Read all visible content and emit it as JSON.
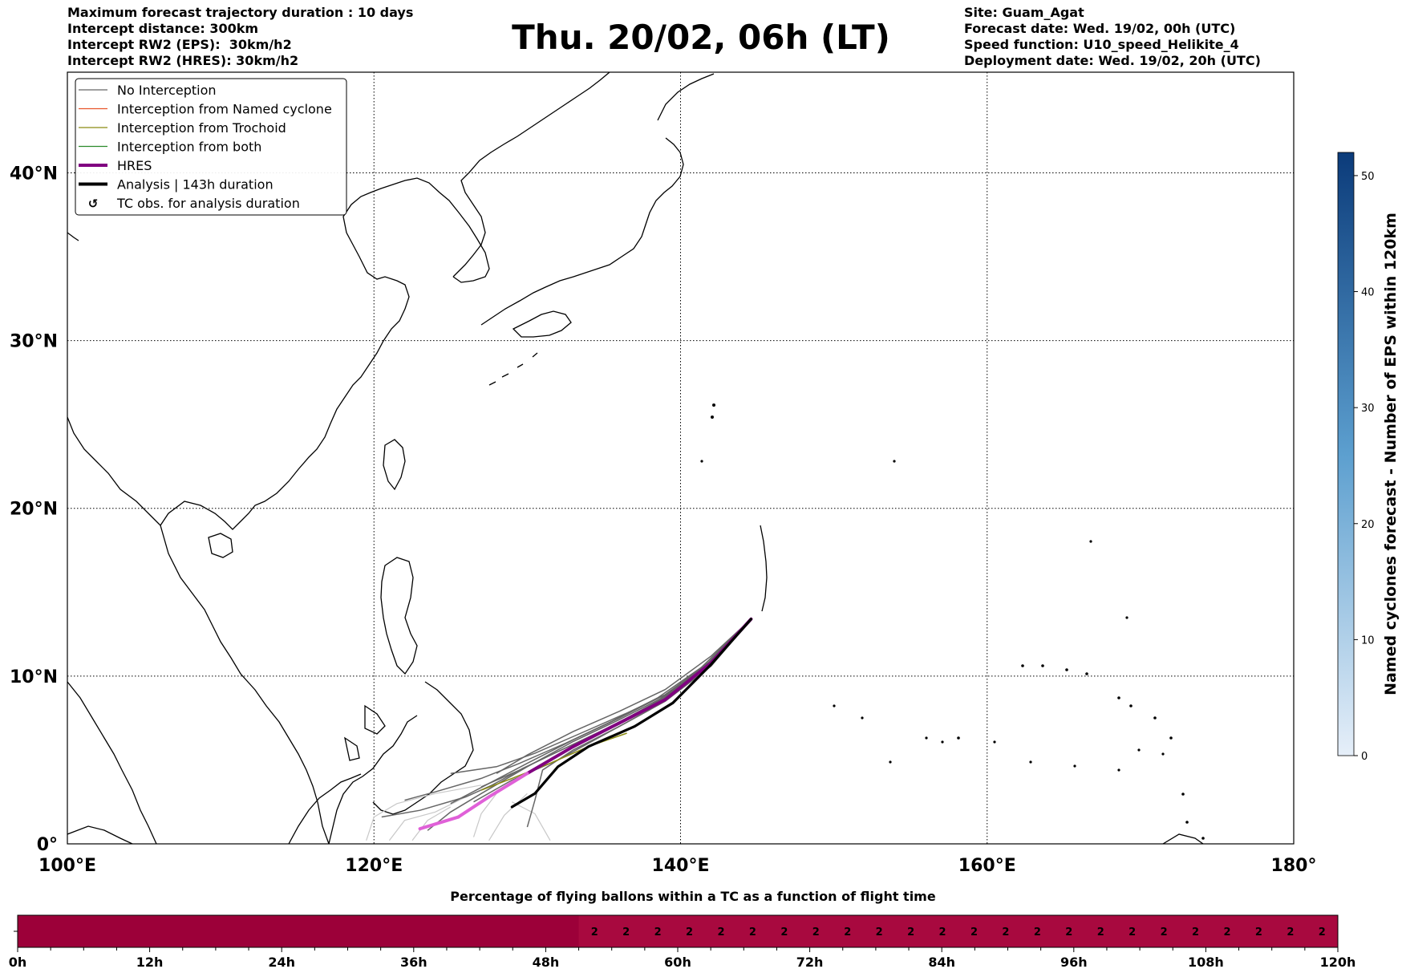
{
  "header": {
    "title": "Thu. 20/02, 06h (LT)",
    "left_lines": [
      "Maximum forecast trajectory duration : 10 days",
      "Intercept distance: 300km",
      "Intercept RW2 (EPS):  30km/h2",
      "Intercept RW2 (HRES): 30km/h2"
    ],
    "right_lines": [
      "Site: Guam_Agat",
      "Forecast date: Wed. 19/02, 00h (UTC)",
      "Speed function: U10_speed_Helikite_4",
      "Deployment date: Wed. 19/02, 20h (UTC)"
    ]
  },
  "legend": [
    {
      "label": "No Interception",
      "color": "#666666",
      "style": "thin"
    },
    {
      "label": "Interception from Named cyclone",
      "color": "#e8542a",
      "style": "thin"
    },
    {
      "label": "Interception from Trochoid",
      "color": "#8a8a10",
      "style": "thin"
    },
    {
      "label": "Interception from both",
      "color": "#2a8a2a",
      "style": "thin"
    },
    {
      "label": "HRES",
      "color": "#800080",
      "style": "thick"
    },
    {
      "label": "Analysis | 143h duration",
      "color": "#000000",
      "style": "thick"
    },
    {
      "label": "TC obs. for analysis duration",
      "color": "#000000",
      "style": "marker"
    }
  ],
  "colorbar": {
    "label": "Named cyclones forecast - Number of EPS within 120km",
    "ticks": [
      "0",
      "10",
      "20",
      "30",
      "40",
      "50"
    ],
    "max": 52,
    "color_low": "#e6eff9",
    "color_high": "#0b3b7a"
  },
  "bottom_bar": {
    "title": "Percentage of flying ballons within a TC as a function of flight time",
    "tick_labels": [
      "0h",
      "12h",
      "24h",
      "36h",
      "48h",
      "60h",
      "72h",
      "84h",
      "96h",
      "108h",
      "120h"
    ],
    "base_color": "#9c0039",
    "active_color": "#a8093f"
  },
  "chart_data": {
    "type": "map-trajectories",
    "xlim": [
      100,
      180
    ],
    "ylim": [
      0,
      46
    ],
    "x_ticks": [
      {
        "value": 100,
        "label": "100°E"
      },
      {
        "value": 120,
        "label": "120°E"
      },
      {
        "value": 140,
        "label": "140°E"
      },
      {
        "value": 160,
        "label": "160°E"
      },
      {
        "value": 180,
        "label": "180°"
      }
    ],
    "y_ticks": [
      {
        "value": 0,
        "label": "0°"
      },
      {
        "value": 10,
        "label": "10°N"
      },
      {
        "value": 20,
        "label": "20°N"
      },
      {
        "value": 30,
        "label": "30°N"
      },
      {
        "value": 40,
        "label": "40°N"
      }
    ],
    "grid": true,
    "legend_position": "top-left",
    "hres_track": [
      [
        144.6,
        13.4
      ],
      [
        142,
        10.8
      ],
      [
        139,
        8.6
      ],
      [
        136,
        7.2
      ],
      [
        133,
        5.8
      ],
      [
        130,
        4.2
      ],
      [
        127.5,
        2.8
      ],
      [
        125.5,
        1.6
      ],
      [
        123,
        0.9
      ]
    ],
    "analysis_track": [
      [
        144.6,
        13.4
      ],
      [
        142,
        10.7
      ],
      [
        139.5,
        8.4
      ],
      [
        137,
        7.0
      ],
      [
        134,
        5.8
      ],
      [
        132,
        4.6
      ],
      [
        130.5,
        3.0
      ],
      [
        129,
        2.2
      ]
    ],
    "ensemble_tracks": [
      [
        [
          144.6,
          13.4
        ],
        [
          142,
          11.2
        ],
        [
          139,
          9.2
        ],
        [
          136,
          7.9
        ],
        [
          133,
          6.7
        ],
        [
          130,
          5.3
        ],
        [
          128,
          4.2
        ]
      ],
      [
        [
          144.6,
          13.4
        ],
        [
          141.5,
          10.5
        ],
        [
          138,
          8.2
        ],
        [
          135,
          6.8
        ],
        [
          132,
          5.5
        ],
        [
          129.5,
          4.4
        ],
        [
          127,
          3.4
        ]
      ],
      [
        [
          144.6,
          13.4
        ],
        [
          142,
          10.9
        ],
        [
          139,
          8.9
        ],
        [
          136,
          7.5
        ],
        [
          133,
          6.2
        ],
        [
          130,
          4.8
        ],
        [
          127.5,
          3.6
        ],
        [
          125,
          2.4
        ]
      ],
      [
        [
          144.6,
          13.4
        ],
        [
          141,
          10.2
        ],
        [
          138,
          8.0
        ],
        [
          135,
          6.5
        ],
        [
          132,
          5.0
        ],
        [
          129,
          3.8
        ],
        [
          126.5,
          2.5
        ]
      ],
      [
        [
          144.6,
          13.4
        ],
        [
          142.2,
          11.0
        ],
        [
          139.5,
          9.1
        ],
        [
          136.5,
          7.8
        ],
        [
          133.5,
          6.6
        ],
        [
          130.5,
          5.4
        ],
        [
          128,
          4.6
        ],
        [
          125,
          4.2
        ]
      ],
      [
        [
          144.6,
          13.4
        ],
        [
          142,
          10.6
        ],
        [
          139,
          8.5
        ],
        [
          136,
          7.0
        ],
        [
          133,
          5.6
        ],
        [
          131,
          4.4
        ],
        [
          130.5,
          2.6
        ],
        [
          130,
          1.0
        ]
      ],
      [
        [
          144.6,
          13.4
        ],
        [
          141.8,
          10.8
        ],
        [
          138.5,
          8.7
        ],
        [
          135.5,
          7.3
        ],
        [
          132.5,
          6.0
        ],
        [
          129.5,
          4.8
        ],
        [
          127,
          3.9
        ],
        [
          124,
          3.1
        ],
        [
          122,
          2.6
        ]
      ],
      [
        [
          144.6,
          13.4
        ],
        [
          142,
          10.9
        ],
        [
          139,
          8.8
        ],
        [
          136,
          7.4
        ],
        [
          133,
          6.1
        ],
        [
          130,
          4.6
        ],
        [
          127,
          3.0
        ],
        [
          125,
          1.9
        ],
        [
          123.5,
          0.8
        ]
      ],
      [
        [
          144.6,
          13.4
        ],
        [
          141.7,
          10.6
        ],
        [
          138.7,
          8.6
        ],
        [
          135.7,
          7.1
        ],
        [
          132.7,
          5.8
        ],
        [
          129.7,
          4.5
        ],
        [
          127.7,
          3.5
        ],
        [
          126,
          2.8
        ],
        [
          123,
          2.0
        ],
        [
          120.5,
          1.6
        ]
      ]
    ],
    "trochoid_tracks": [
      [
        [
          136.5,
          6.6
        ],
        [
          134,
          5.8
        ],
        [
          131.5,
          4.8
        ],
        [
          129,
          3.9
        ],
        [
          127,
          3.2
        ]
      ]
    ],
    "faded_tracks": [
      [
        [
          127,
          3.5
        ],
        [
          124,
          3.0
        ],
        [
          121.5,
          2.4
        ],
        [
          120,
          1.6
        ],
        [
          119.5,
          0.2
        ]
      ],
      [
        [
          126,
          2.8
        ],
        [
          124,
          1.9
        ],
        [
          122,
          1.4
        ],
        [
          121,
          0.2
        ]
      ],
      [
        [
          128,
          3.0
        ],
        [
          127,
          1.8
        ],
        [
          126.5,
          0.4
        ]
      ],
      [
        [
          129,
          2.5
        ],
        [
          130.5,
          1.8
        ],
        [
          131.5,
          0.2
        ]
      ],
      [
        [
          125,
          2.2
        ],
        [
          123.5,
          1.4
        ],
        [
          122.5,
          0.2
        ]
      ],
      [
        [
          130,
          3.0
        ],
        [
          128.5,
          1.7
        ],
        [
          127.5,
          0.2
        ]
      ]
    ],
    "bar_values": {
      "bin_hours": 5,
      "labels": [
        "2",
        "2",
        "2",
        "2",
        "2",
        "2",
        "2",
        "2",
        "2",
        "2",
        "2",
        "2",
        "2",
        "2",
        "2",
        "2",
        "2",
        "2",
        "2",
        "2",
        "2",
        "2",
        "2",
        "2"
      ],
      "start_hour": 51
    }
  }
}
